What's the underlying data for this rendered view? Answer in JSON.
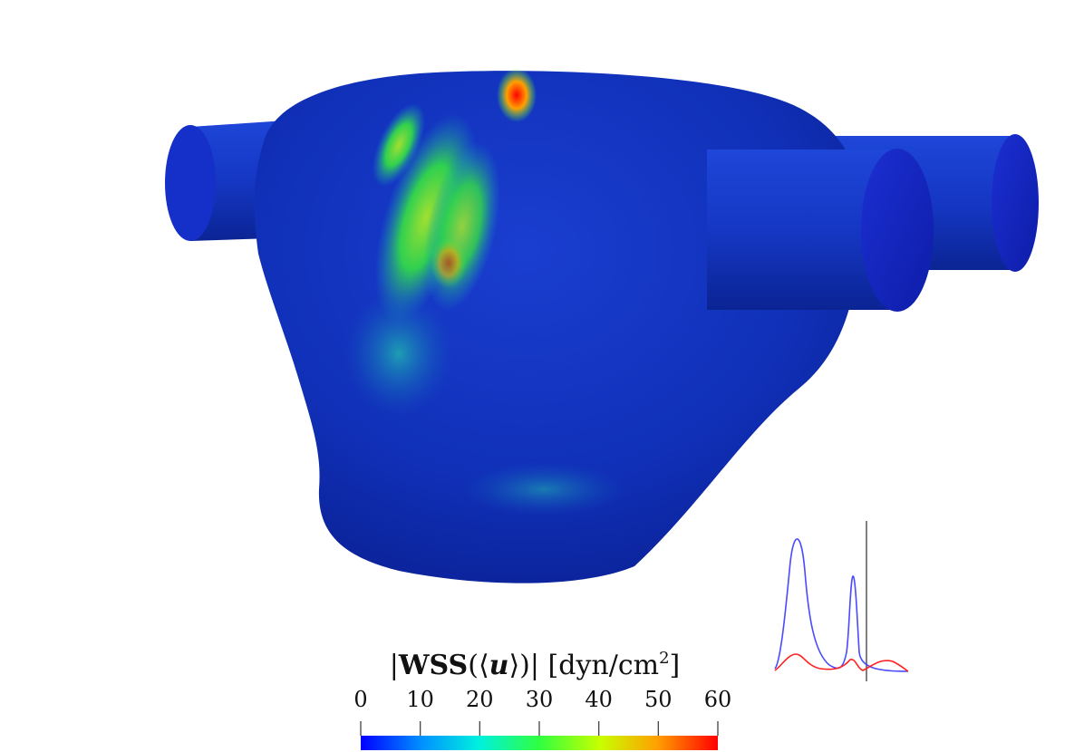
{
  "colorbar": {
    "title_prefix": "|",
    "title_wss": "WSS",
    "title_open": "(⟨",
    "title_u": "u",
    "title_close": "⟩)|",
    "title_units": "[dyn/cm",
    "title_units_sup": "2",
    "title_units_end": "]",
    "ticks": [
      "0",
      "10",
      "20",
      "30",
      "40",
      "50",
      "60"
    ],
    "range": [
      0,
      60
    ],
    "colormap": [
      "#0000ff",
      "#00a0ff",
      "#00ffd0",
      "#40ff40",
      "#d0ff00",
      "#ffa000",
      "#ff0000"
    ]
  },
  "inset_plot": {
    "series": [
      {
        "color": "#4a4aff"
      },
      {
        "color": "#ff2020"
      }
    ]
  }
}
